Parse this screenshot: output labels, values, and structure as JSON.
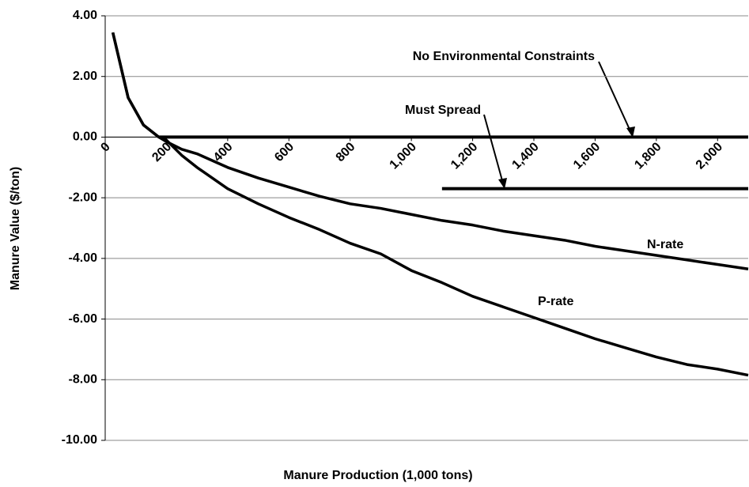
{
  "chart_data": {
    "type": "line",
    "x_label": "Manure Production (1,000 tons)",
    "y_label": "Manure Value ($/ton)",
    "xlim": [
      0,
      2100
    ],
    "ylim": [
      -10,
      4
    ],
    "xticks": [
      0,
      200,
      400,
      600,
      800,
      {
        "value": 1000,
        "label": "1,000"
      },
      {
        "value": 1200,
        "label": "1,200"
      },
      {
        "value": 1400,
        "label": "1,400"
      },
      {
        "value": 1600,
        "label": "1,600"
      },
      {
        "value": 1800,
        "label": "1,800"
      },
      {
        "value": 2000,
        "label": "2,000"
      }
    ],
    "yticks": [
      {
        "value": 4,
        "label": "4.00"
      },
      {
        "value": 2,
        "label": "2.00"
      },
      {
        "value": 0,
        "label": "0.00"
      },
      {
        "value": -2,
        "label": "-2.00"
      },
      {
        "value": -4,
        "label": "-4.00"
      },
      {
        "value": -6,
        "label": "-6.00"
      },
      {
        "value": -8,
        "label": "-8.00"
      },
      {
        "value": -10,
        "label": "-10.00"
      }
    ],
    "grid": true,
    "series": [
      {
        "name": "N-rate",
        "color": "#000000",
        "x": [
          25,
          75,
          125,
          175,
          200,
          250,
          300,
          400,
          500,
          600,
          700,
          800,
          900,
          1000,
          1100,
          1200,
          1300,
          1400,
          1500,
          1600,
          1700,
          1800,
          1900,
          2000,
          2100
        ],
        "values": [
          3.45,
          1.3,
          0.4,
          0.0,
          -0.15,
          -0.4,
          -0.55,
          -1.0,
          -1.35,
          -1.65,
          -1.95,
          -2.2,
          -2.35,
          -2.55,
          -2.75,
          -2.9,
          -3.1,
          -3.25,
          -3.4,
          -3.6,
          -3.75,
          -3.9,
          -4.05,
          -4.2,
          -4.35
        ]
      },
      {
        "name": "P-rate",
        "color": "#000000",
        "x": [
          25,
          75,
          125,
          175,
          200,
          250,
          300,
          400,
          500,
          600,
          700,
          800,
          900,
          1000,
          1100,
          1200,
          1300,
          1400,
          1500,
          1600,
          1700,
          1800,
          1900,
          2000,
          2100
        ],
        "values": [
          3.45,
          1.3,
          0.4,
          0.0,
          -0.1,
          -0.6,
          -1.0,
          -1.7,
          -2.2,
          -2.65,
          -3.05,
          -3.5,
          -3.85,
          -4.4,
          -4.8,
          -5.25,
          -5.6,
          -5.95,
          -6.3,
          -6.65,
          -6.95,
          -7.25,
          -7.5,
          -7.65,
          -7.85
        ]
      },
      {
        "name": "Must Spread",
        "color": "#000000",
        "x": [
          1100,
          2100
        ],
        "values": [
          -1.7,
          -1.7
        ]
      },
      {
        "name": "No Environmental Constraints",
        "color": "#000000",
        "x": [
          175,
          2100
        ],
        "values": [
          0,
          0
        ]
      }
    ]
  }
}
